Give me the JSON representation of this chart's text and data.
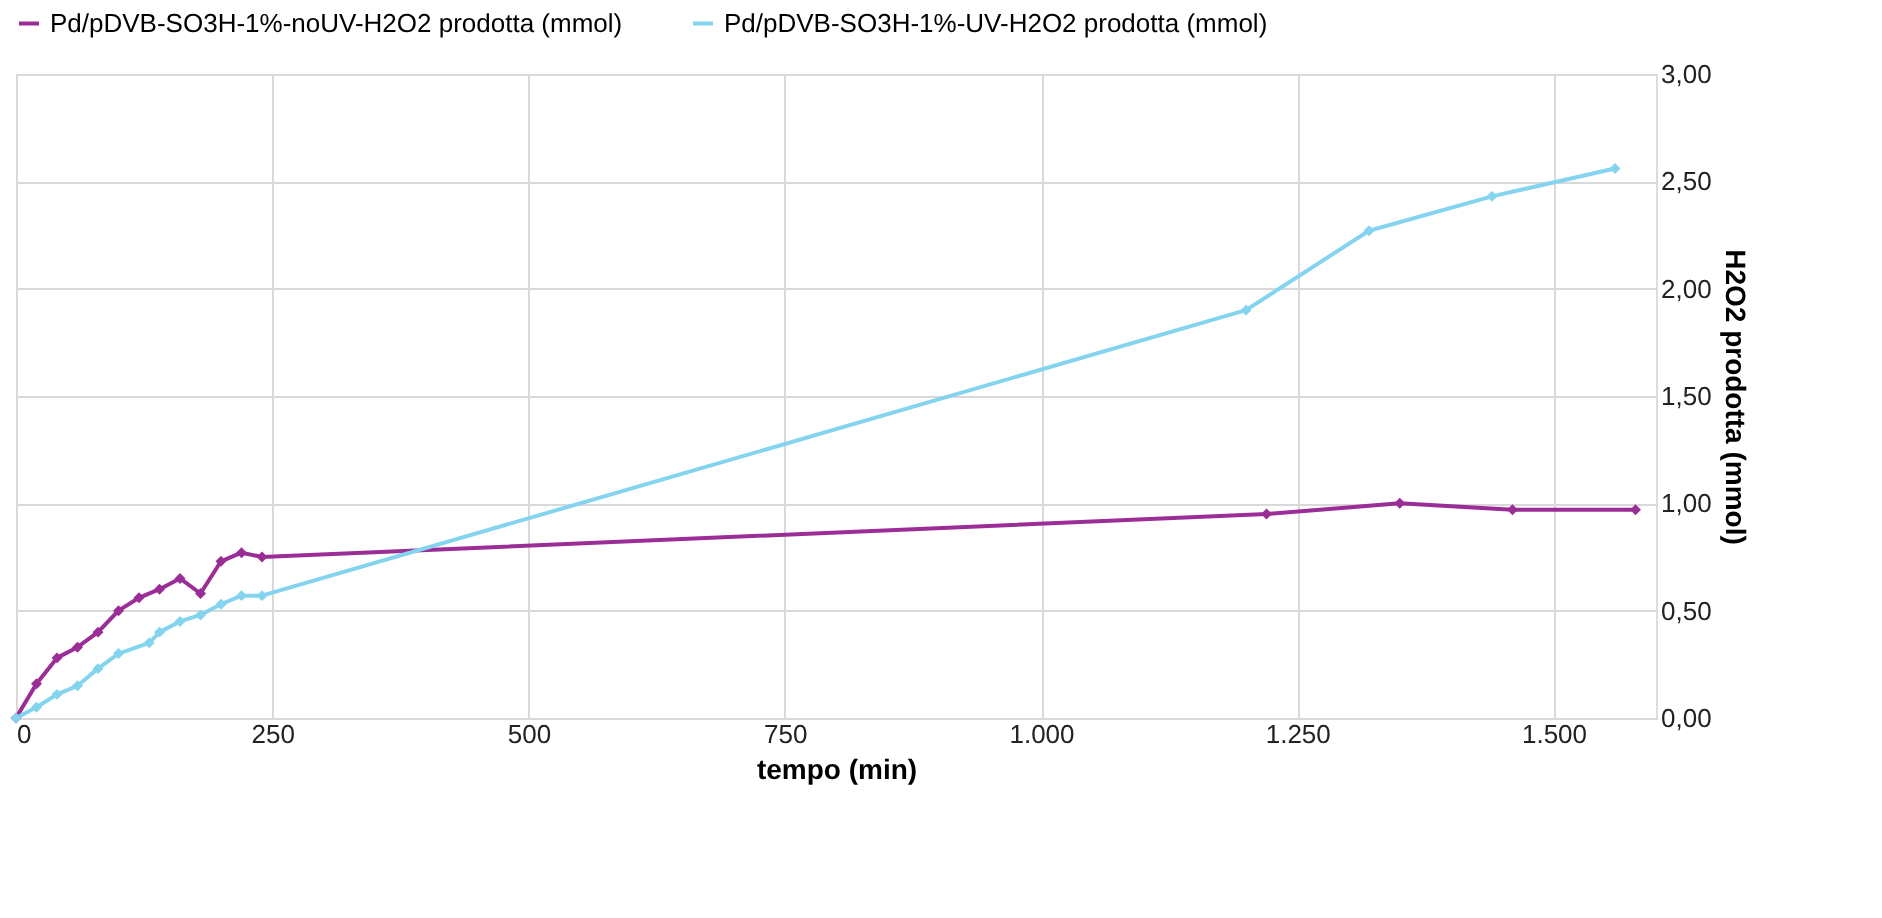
{
  "chart_data": {
    "type": "line",
    "xlabel": "tempo (min)",
    "ylabel": "H2O2 prodotta (mmol)",
    "xlim": [
      0,
      1600
    ],
    "ylim": [
      0,
      3
    ],
    "xticks": [
      0,
      250,
      500,
      750,
      {
        "value": 1000,
        "label": "1.000"
      },
      {
        "value": 1250,
        "label": "1.250"
      },
      {
        "value": 1500,
        "label": "1.500"
      }
    ],
    "yticks": [
      {
        "value": 0,
        "label": "0,00"
      },
      {
        "value": 0.5,
        "label": "0,50"
      },
      {
        "value": 1,
        "label": "1,00"
      },
      {
        "value": 1.5,
        "label": "1,50"
      },
      {
        "value": 2,
        "label": "2,00"
      },
      {
        "value": 2.5,
        "label": "2,50"
      },
      {
        "value": 3,
        "label": "3,00"
      }
    ],
    "grid": true,
    "legend": "top",
    "marker": "diamond",
    "line_style": "solid",
    "series": [
      {
        "name": "Pd/pDVB-SO3H-1%-noUV-H2O2 prodotta (mmol)",
        "color": "#9b2d96",
        "x": [
          0,
          20,
          40,
          60,
          80,
          100,
          120,
          140,
          160,
          180,
          200,
          220,
          240,
          1220,
          1350,
          1460,
          1580
        ],
        "values": [
          0,
          0.16,
          0.28,
          0.33,
          0.4,
          0.5,
          0.56,
          0.6,
          0.65,
          0.58,
          0.73,
          0.77,
          0.75,
          0.95,
          1.0,
          0.97,
          0.97
        ]
      },
      {
        "name": "Pd/pDVB-SO3H-1%-UV-H2O2 prodotta (mmol)",
        "color": "#84d4f0",
        "x": [
          0,
          20,
          40,
          60,
          80,
          100,
          130,
          140,
          160,
          180,
          200,
          220,
          240,
          1200,
          1320,
          1440,
          1560
        ],
        "values": [
          0,
          0.05,
          0.11,
          0.15,
          0.23,
          0.3,
          0.35,
          0.4,
          0.45,
          0.48,
          0.53,
          0.57,
          0.57,
          1.9,
          2.27,
          2.43,
          2.56
        ]
      }
    ]
  }
}
